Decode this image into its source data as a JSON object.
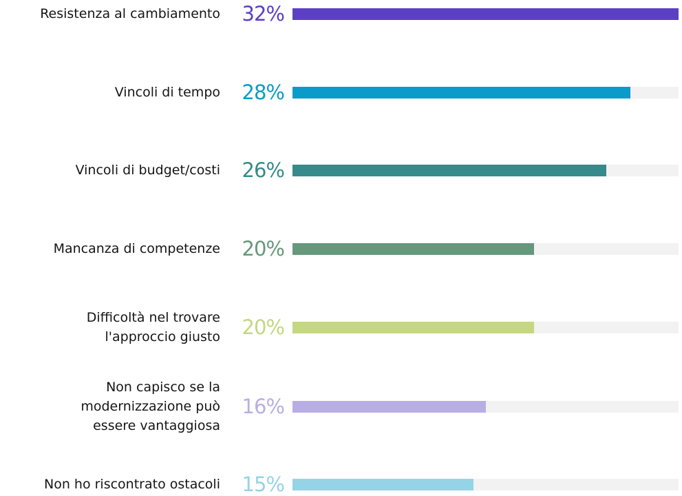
{
  "chart_data": {
    "type": "bar",
    "orientation": "horizontal",
    "categories": [
      "Resistenza al cambiamento",
      "Vincoli di tempo",
      "Vincoli di budget/costi",
      "Mancanza di competenze",
      "Difficoltà nel trovare\nl'approccio giusto",
      "Non capisco se la\nmodernizzazione può\nessere vantaggiosa",
      "Non ho riscontrato ostacoli"
    ],
    "values": [
      32,
      28,
      26,
      20,
      20,
      16,
      15
    ],
    "value_labels": [
      "32%",
      "28%",
      "26%",
      "20%",
      "20%",
      "16%",
      "15%"
    ],
    "colors": [
      "#5c40c4",
      "#0a9bca",
      "#368a8a",
      "#66987b",
      "#c5d780",
      "#b9aee4",
      "#95d4e6"
    ],
    "track_color": "#f2f2f2",
    "xlim": [
      0,
      32
    ]
  }
}
